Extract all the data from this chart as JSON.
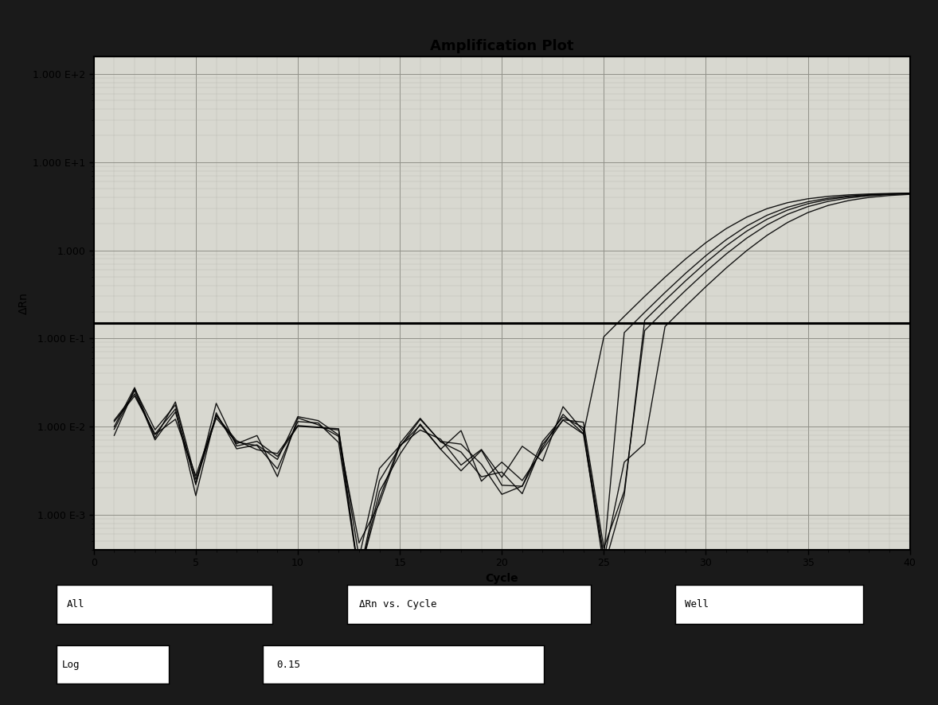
{
  "title": "Amplification Plot",
  "xlabel": "Cycle",
  "ylabel": "ΔRn",
  "xlim": [
    0,
    40
  ],
  "ylim_log": [
    -3.4,
    2.2
  ],
  "threshold": 0.15,
  "outer_bg": "#1a1a1a",
  "inner_bg": "#d8d8d0",
  "plot_bg": "#d8d8d0",
  "grid_major_color": "#a0a090",
  "grid_minor_color": "#b8b8b0",
  "line_color": "#000000",
  "threshold_color": "#000000",
  "title_fontsize": 13,
  "axis_label_fontsize": 10,
  "tick_label_fontsize": 9,
  "bottom_bar_bg": "#101010",
  "bottom_labels": [
    "All",
    "ΔRn vs. Cycle",
    "Well"
  ],
  "bottom_extra": [
    "Log",
    "0.15"
  ],
  "n_curves": 5,
  "top_bar_color": "#c0c0c0",
  "curve_data": {
    "baseline_cycles": [
      1,
      2,
      3,
      4,
      5,
      6,
      7,
      8,
      9,
      10,
      11,
      12,
      13,
      14,
      15,
      16,
      17,
      18,
      19,
      20,
      21,
      22,
      23,
      24,
      25,
      26,
      27
    ],
    "base_pattern": [
      0.009,
      0.022,
      0.008,
      0.016,
      0.003,
      0.014,
      0.007,
      0.006,
      0.005,
      0.011,
      0.012,
      0.008,
      0.00025,
      0.002,
      0.006,
      0.011,
      0.006,
      0.005,
      0.004,
      0.003,
      0.003,
      0.006,
      0.011,
      0.008,
      0.0004,
      0.003,
      0.006
    ],
    "rise_start": 26,
    "plateau": 4.5,
    "offsets": [
      -1.2,
      -0.4,
      0.0,
      0.5,
      1.3
    ]
  }
}
